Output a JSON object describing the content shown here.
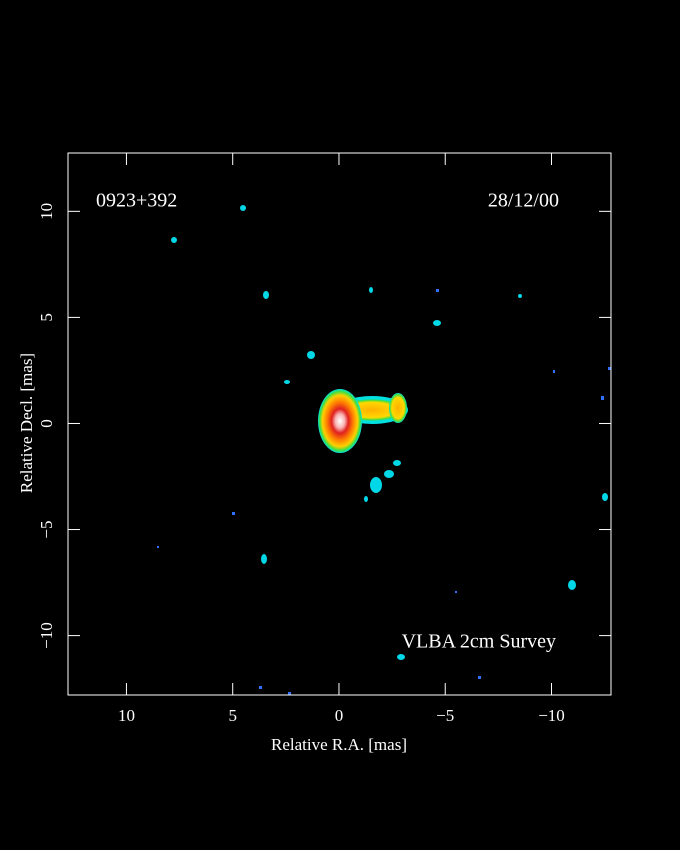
{
  "chart_data": {
    "type": "image",
    "source": "0923+392",
    "date": "28/12/00",
    "annotation": "VLBA 2cm Survey",
    "xlabel": "Relative R.A. [mas]",
    "ylabel": "Relative Decl. [mas]",
    "xlim": [
      12.75,
      -12.8
    ],
    "ylim": [
      -12.8,
      12.75
    ],
    "xticks": [
      10,
      5,
      0,
      {
        "value": -5,
        "label": "−5"
      },
      {
        "value": -10,
        "label": "−10"
      }
    ],
    "yticks": [
      {
        "value": -10,
        "label": "−10"
      },
      {
        "value": -5,
        "label": "−5"
      },
      0,
      5,
      10
    ]
  }
}
